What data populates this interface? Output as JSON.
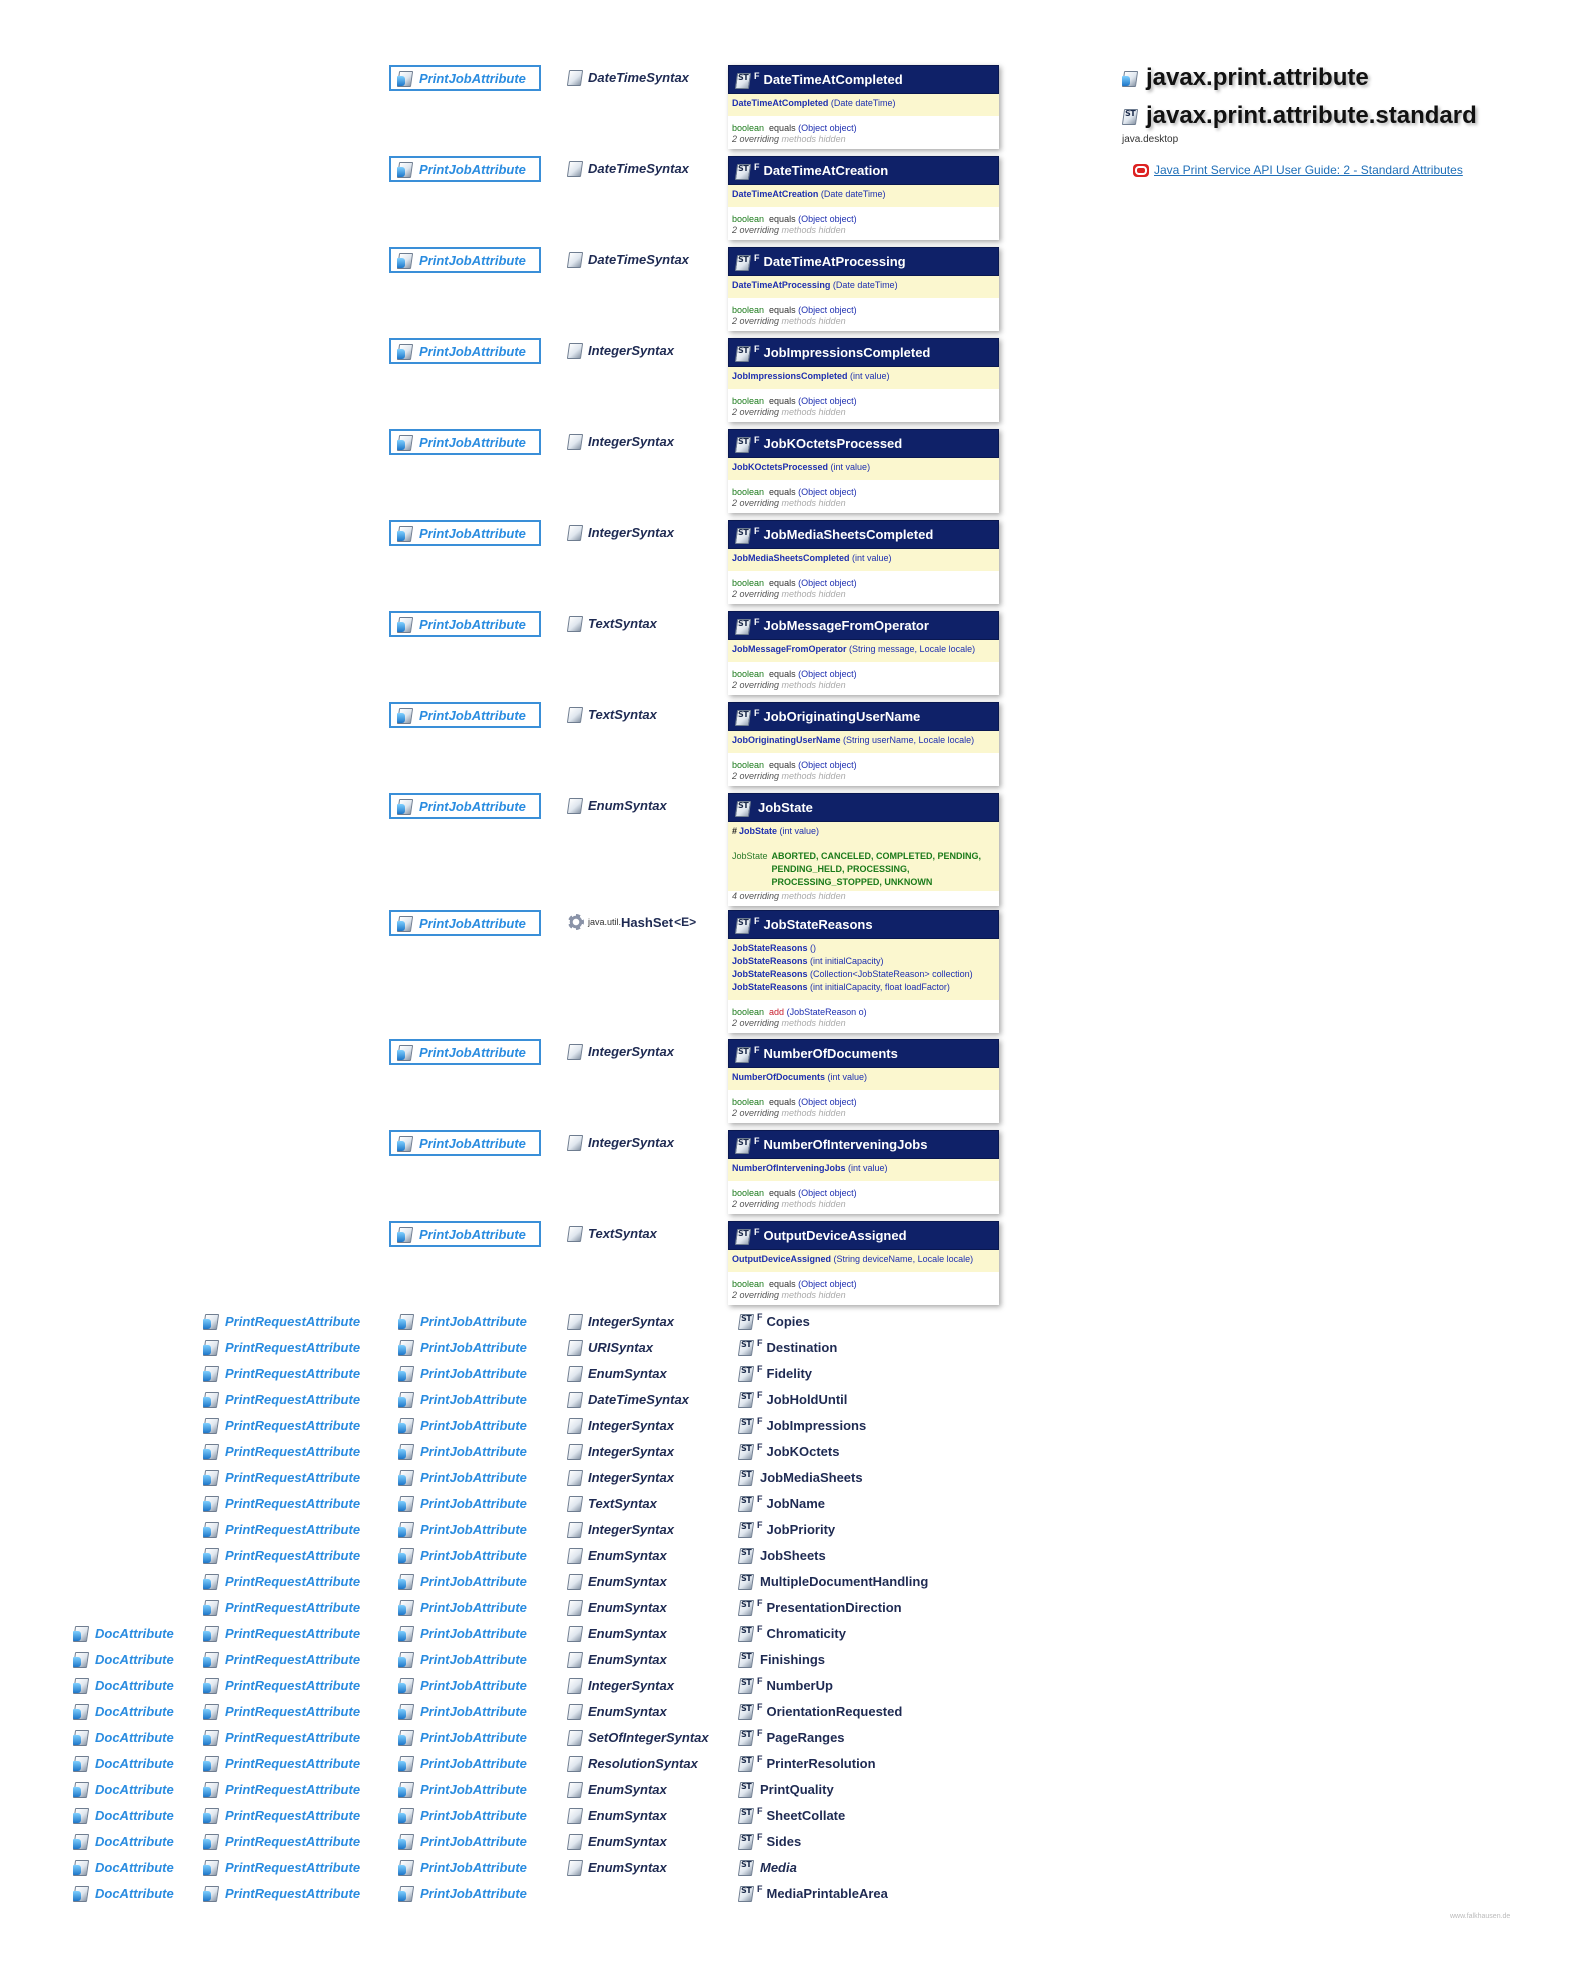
{
  "packages": [
    {
      "name": "javax.print.attribute"
    },
    {
      "name": "javax.print.attribute.standard"
    }
  ],
  "module": "java.desktop",
  "guide_link": "Java Print Service API User Guide: 2 - Standard Attributes",
  "footer": "www.falkhausen.de",
  "interface_label": "PrintJobAttribute",
  "request_label": "PrintRequestAttribute",
  "doc_label": "DocAttribute",
  "method_label": "equals",
  "detailed": [
    {
      "name": "DateTimeAtCompleted",
      "final": true,
      "super": "DateTimeSyntax",
      "ctors": [
        {
          "name": "DateTimeAtCompleted",
          "params": "(Date dateTime)"
        }
      ],
      "method": {
        "ret": "boolean",
        "name": "equals",
        "params": "(Object object)"
      },
      "hidden": "2 overriding"
    },
    {
      "name": "DateTimeAtCreation",
      "final": true,
      "super": "DateTimeSyntax",
      "ctors": [
        {
          "name": "DateTimeAtCreation",
          "params": "(Date dateTime)"
        }
      ],
      "method": {
        "ret": "boolean",
        "name": "equals",
        "params": "(Object object)"
      },
      "hidden": "2 overriding"
    },
    {
      "name": "DateTimeAtProcessing",
      "final": true,
      "super": "DateTimeSyntax",
      "ctors": [
        {
          "name": "DateTimeAtProcessing",
          "params": "(Date dateTime)"
        }
      ],
      "method": {
        "ret": "boolean",
        "name": "equals",
        "params": "(Object object)"
      },
      "hidden": "2 overriding"
    },
    {
      "name": "JobImpressionsCompleted",
      "final": true,
      "super": "IntegerSyntax",
      "ctors": [
        {
          "name": "JobImpressionsCompleted",
          "params": "(int value)"
        }
      ],
      "method": {
        "ret": "boolean",
        "name": "equals",
        "params": "(Object object)"
      },
      "hidden": "2 overriding"
    },
    {
      "name": "JobKOctetsProcessed",
      "final": true,
      "super": "IntegerSyntax",
      "ctors": [
        {
          "name": "JobKOctetsProcessed",
          "params": "(int value)"
        }
      ],
      "method": {
        "ret": "boolean",
        "name": "equals",
        "params": "(Object object)"
      },
      "hidden": "2 overriding"
    },
    {
      "name": "JobMediaSheetsCompleted",
      "final": true,
      "super": "IntegerSyntax",
      "ctors": [
        {
          "name": "JobMediaSheetsCompleted",
          "params": "(int value)"
        }
      ],
      "method": {
        "ret": "boolean",
        "name": "equals",
        "params": "(Object object)"
      },
      "hidden": "2 overriding"
    },
    {
      "name": "JobMessageFromOperator",
      "final": true,
      "super": "TextSyntax",
      "ctors": [
        {
          "name": "JobMessageFromOperator",
          "params": "(String message, Locale locale)"
        }
      ],
      "method": {
        "ret": "boolean",
        "name": "equals",
        "params": "(Object object)"
      },
      "hidden": "2 overriding"
    },
    {
      "name": "JobOriginatingUserName",
      "final": true,
      "super": "TextSyntax",
      "ctors": [
        {
          "name": "JobOriginatingUserName",
          "params": "(String userName, Locale locale)"
        }
      ],
      "method": {
        "ret": "boolean",
        "name": "equals",
        "params": "(Object object)"
      },
      "hidden": "2 overriding"
    },
    {
      "name": "JobState",
      "final": false,
      "super": "EnumSyntax",
      "ctors": [
        {
          "name": "JobState",
          "params": "(int value)",
          "protected": true
        }
      ],
      "fields": {
        "type": "JobState",
        "values": [
          "ABORTED, CANCELED, COMPLETED, PENDING,",
          "PENDING_HELD, PROCESSING,",
          "PROCESSING_STOPPED, UNKNOWN"
        ]
      },
      "hidden": "4 overriding"
    },
    {
      "name": "JobStateReasons",
      "final": true,
      "super": "HashSet",
      "super_pkg": "java.util.",
      "super_generic": "<E>",
      "ctors": [
        {
          "name": "JobStateReasons",
          "params": "()"
        },
        {
          "name": "JobStateReasons",
          "params": "(int initialCapacity)"
        },
        {
          "name": "JobStateReasons",
          "params": "(Collection<JobStateReason> collection)"
        },
        {
          "name": "JobStateReasons",
          "params": "(int initialCapacity, float loadFactor)"
        }
      ],
      "method": {
        "ret": "boolean",
        "name": "add",
        "params": "(JobStateReason o)",
        "red": true
      },
      "hidden": "2 overriding"
    },
    {
      "name": "NumberOfDocuments",
      "final": true,
      "super": "IntegerSyntax",
      "ctors": [
        {
          "name": "NumberOfDocuments",
          "params": "(int value)"
        }
      ],
      "method": {
        "ret": "boolean",
        "name": "equals",
        "params": "(Object object)"
      },
      "hidden": "2 overriding"
    },
    {
      "name": "NumberOfInterveningJobs",
      "final": true,
      "super": "IntegerSyntax",
      "ctors": [
        {
          "name": "NumberOfInterveningJobs",
          "params": "(int value)"
        }
      ],
      "method": {
        "ret": "boolean",
        "name": "equals",
        "params": "(Object object)"
      },
      "hidden": "2 overriding"
    },
    {
      "name": "OutputDeviceAssigned",
      "final": true,
      "super": "TextSyntax",
      "ctors": [
        {
          "name": "OutputDeviceAssigned",
          "params": "(String deviceName, Locale locale)"
        }
      ],
      "method": {
        "ret": "boolean",
        "name": "equals",
        "params": "(Object object)"
      },
      "hidden": "2 overriding"
    }
  ],
  "hidden_suffix": "methods hidden",
  "compact": [
    {
      "name": "Copies",
      "final": true,
      "super": "IntegerSyntax",
      "request": true,
      "doc": false
    },
    {
      "name": "Destination",
      "final": true,
      "super": "URISyntax",
      "request": true,
      "doc": false
    },
    {
      "name": "Fidelity",
      "final": true,
      "super": "EnumSyntax",
      "request": true,
      "doc": false
    },
    {
      "name": "JobHoldUntil",
      "final": true,
      "super": "DateTimeSyntax",
      "request": true,
      "doc": false
    },
    {
      "name": "JobImpressions",
      "final": true,
      "super": "IntegerSyntax",
      "request": true,
      "doc": false
    },
    {
      "name": "JobKOctets",
      "final": true,
      "super": "IntegerSyntax",
      "request": true,
      "doc": false
    },
    {
      "name": "JobMediaSheets",
      "final": false,
      "super": "IntegerSyntax",
      "request": true,
      "doc": false
    },
    {
      "name": "JobName",
      "final": true,
      "super": "TextSyntax",
      "request": true,
      "doc": false
    },
    {
      "name": "JobPriority",
      "final": true,
      "super": "IntegerSyntax",
      "request": true,
      "doc": false
    },
    {
      "name": "JobSheets",
      "final": false,
      "super": "EnumSyntax",
      "request": true,
      "doc": false
    },
    {
      "name": "MultipleDocumentHandling",
      "final": false,
      "super": "EnumSyntax",
      "request": true,
      "doc": false
    },
    {
      "name": "PresentationDirection",
      "final": true,
      "super": "EnumSyntax",
      "request": true,
      "doc": false
    },
    {
      "name": "Chromaticity",
      "final": true,
      "super": "EnumSyntax",
      "request": true,
      "doc": true
    },
    {
      "name": "Finishings",
      "final": false,
      "super": "EnumSyntax",
      "request": true,
      "doc": true
    },
    {
      "name": "NumberUp",
      "final": true,
      "super": "IntegerSyntax",
      "request": true,
      "doc": true
    },
    {
      "name": "OrientationRequested",
      "final": true,
      "super": "EnumSyntax",
      "request": true,
      "doc": true
    },
    {
      "name": "PageRanges",
      "final": true,
      "super": "SetOfIntegerSyntax",
      "request": true,
      "doc": true
    },
    {
      "name": "PrinterResolution",
      "final": true,
      "super": "ResolutionSyntax",
      "request": true,
      "doc": true
    },
    {
      "name": "PrintQuality",
      "final": false,
      "super": "EnumSyntax",
      "request": true,
      "doc": true
    },
    {
      "name": "SheetCollate",
      "final": true,
      "super": "EnumSyntax",
      "request": true,
      "doc": true
    },
    {
      "name": "Sides",
      "final": true,
      "super": "EnumSyntax",
      "request": true,
      "doc": true
    },
    {
      "name": "Media",
      "final": false,
      "italic": true,
      "super": "EnumSyntax",
      "request": true,
      "doc": true
    },
    {
      "name": "MediaPrintableArea",
      "final": true,
      "super": "",
      "request": true,
      "doc": true
    }
  ]
}
